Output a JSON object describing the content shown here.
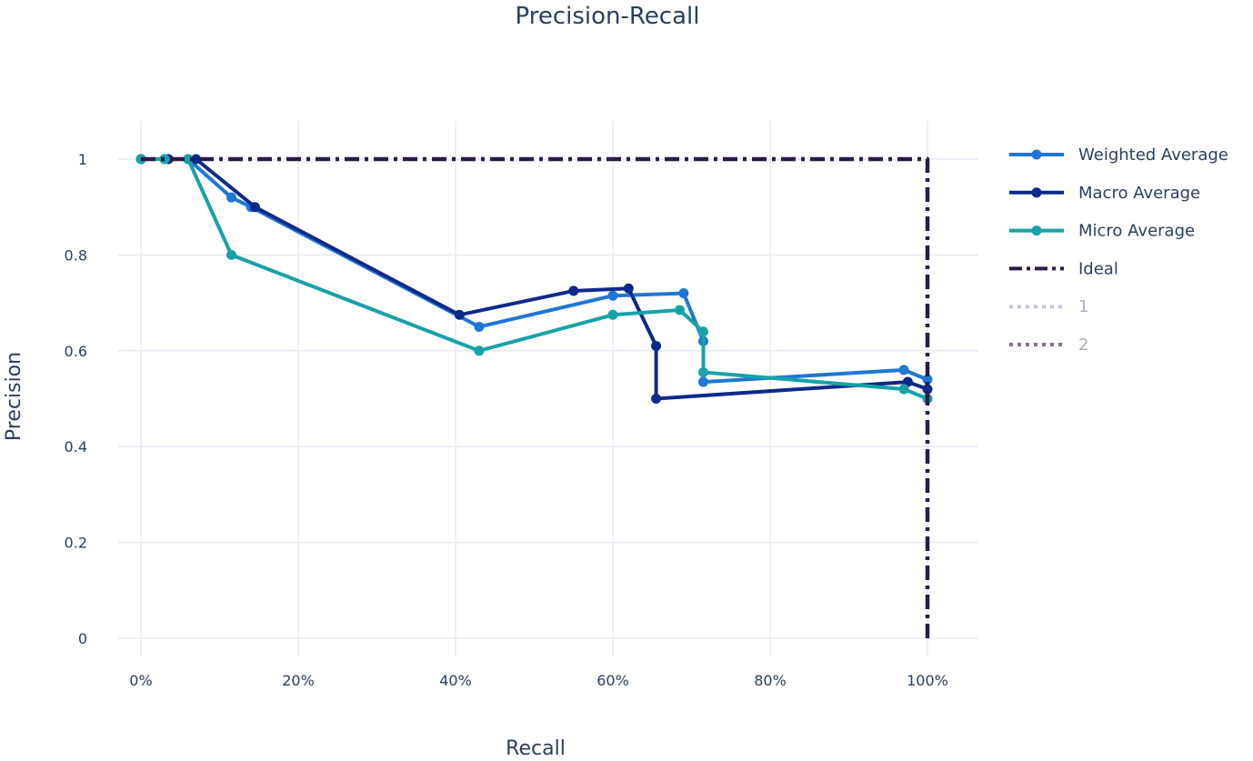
{
  "chart_data": {
    "type": "line",
    "title": "Precision-Recall",
    "xlabel": "Recall",
    "ylabel": "Precision",
    "xlim": [
      0,
      1
    ],
    "ylim": [
      0,
      1
    ],
    "x_tick_labels": [
      "0%",
      "20%",
      "40%",
      "60%",
      "80%",
      "100%"
    ],
    "x_ticks": [
      0,
      0.2,
      0.4,
      0.6,
      0.8,
      1.0
    ],
    "y_tick_labels": [
      "0",
      "0.2",
      "0.4",
      "0.6",
      "0.8",
      "1"
    ],
    "y_ticks": [
      0,
      0.2,
      0.4,
      0.6,
      0.8,
      1.0
    ],
    "grid": true,
    "legend_position": "top-right, outside plot",
    "series": [
      {
        "name": "Weighted Average",
        "color": "#1f77d4",
        "dash": "solid",
        "markers": true,
        "x": [
          0.0,
          0.03,
          0.06,
          0.115,
          0.14,
          0.43,
          0.6,
          0.69,
          0.715,
          0.715,
          0.97,
          1.0
        ],
        "y": [
          1.0,
          1.0,
          1.0,
          0.92,
          0.9,
          0.65,
          0.715,
          0.72,
          0.62,
          0.535,
          0.56,
          0.54
        ]
      },
      {
        "name": "Macro Average",
        "color": "#0d2a8a",
        "dash": "solid",
        "markers": true,
        "x": [
          0.0,
          0.035,
          0.07,
          0.145,
          0.405,
          0.55,
          0.62,
          0.655,
          0.655,
          0.975,
          1.0
        ],
        "y": [
          1.0,
          1.0,
          1.0,
          0.9,
          0.675,
          0.725,
          0.73,
          0.61,
          0.5,
          0.535,
          0.52
        ]
      },
      {
        "name": "Micro Average",
        "color": "#17a2a8",
        "dash": "solid",
        "markers": true,
        "x": [
          0.0,
          0.03,
          0.06,
          0.115,
          0.43,
          0.6,
          0.685,
          0.715,
          0.715,
          0.97,
          1.0
        ],
        "y": [
          1.0,
          1.0,
          1.0,
          0.8,
          0.6,
          0.675,
          0.685,
          0.64,
          0.555,
          0.52,
          0.5
        ]
      },
      {
        "name": "Ideal",
        "color": "#2b1a4a",
        "dash": "dashdot",
        "markers": false,
        "x": [
          0.0,
          1.0,
          1.0
        ],
        "y": [
          1.0,
          1.0,
          0.0
        ]
      },
      {
        "name": "1",
        "color": "#c4c6ea",
        "dash": "dot",
        "markers": false,
        "x": [],
        "y": []
      },
      {
        "name": "2",
        "color": "#8e6f8f",
        "dash": "dot",
        "markers": false,
        "x": [],
        "y": []
      }
    ]
  }
}
